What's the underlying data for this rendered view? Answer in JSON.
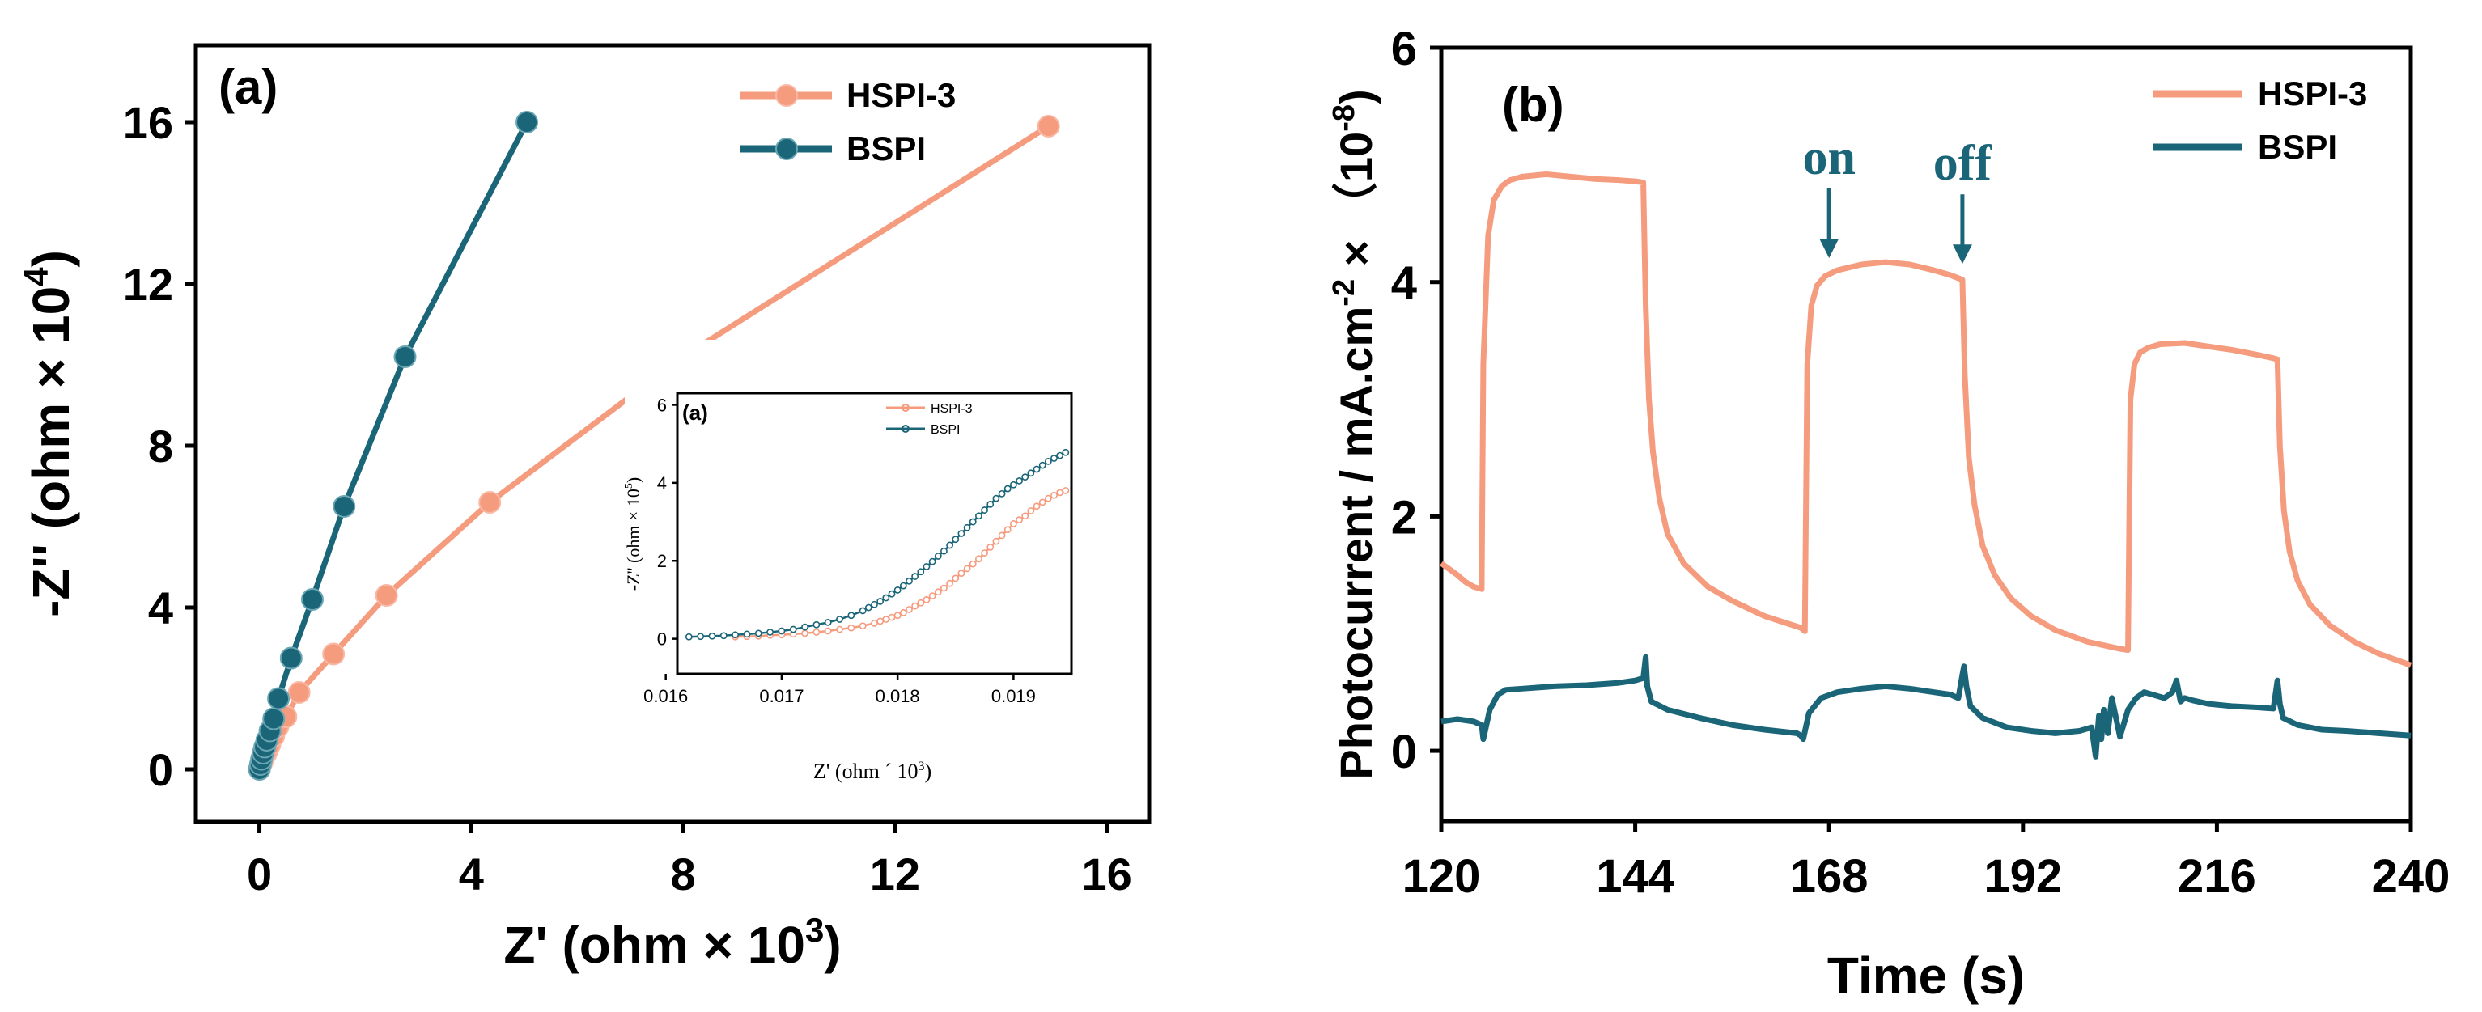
{
  "colors": {
    "hspi": "#F59B7E",
    "bspi": "#1A6577",
    "axis": "#000000",
    "annotation": "#1A6577"
  },
  "chart_data": [
    {
      "type": "line",
      "panel_label": "(a)",
      "xlabel": "Z' (ohm × 10",
      "xlabel_exp": "3",
      "xlabel_close": ")",
      "ylabel": "-Z'' (ohm × 10",
      "ylabel_exp": "4",
      "ylabel_close": ")",
      "xlim": [
        -1.2,
        16.8
      ],
      "ylim": [
        -1.3,
        17.9
      ],
      "xticks": [
        0,
        4,
        8,
        12,
        16
      ],
      "yticks": [
        0,
        4,
        8,
        12,
        16
      ],
      "xtick_labels": [
        "0",
        "4",
        "8",
        "12",
        "16"
      ],
      "ytick_labels": [
        "0",
        "4",
        "8",
        "12",
        "16"
      ],
      "legend": {
        "position": "top-right",
        "entries": [
          "HSPI-3",
          "BSPI"
        ]
      },
      "series": [
        {
          "name": "HSPI-3",
          "color_key": "hspi",
          "x": [
            0.0,
            0.02,
            0.05,
            0.08,
            0.12,
            0.16,
            0.2,
            0.27,
            0.35,
            0.5,
            0.75,
            1.4,
            2.4,
            4.35,
            8.0,
            14.9
          ],
          "y": [
            0.0,
            0.1,
            0.18,
            0.27,
            0.38,
            0.5,
            0.62,
            0.82,
            1.05,
            1.3,
            1.9,
            2.85,
            4.3,
            6.6,
            10.2,
            15.9
          ]
        },
        {
          "name": "BSPI",
          "color_key": "bspi",
          "x": [
            0.0,
            0.02,
            0.04,
            0.07,
            0.1,
            0.14,
            0.2,
            0.27,
            0.36,
            0.6,
            1.0,
            1.6,
            2.75,
            5.05
          ],
          "y": [
            0.0,
            0.12,
            0.25,
            0.4,
            0.55,
            0.72,
            0.95,
            1.25,
            1.75,
            2.75,
            4.2,
            6.5,
            10.2,
            16.0
          ]
        }
      ]
    },
    {
      "type": "line",
      "role": "inset",
      "panel_label": "(a)",
      "xlabel": "Z' (ohm ´ 10",
      "xlabel_exp": "3",
      "xlabel_close": ")",
      "ylabel": "-Z'' (ohm × 10",
      "ylabel_exp": "5",
      "ylabel_close": ")",
      "xlim": [
        0.0161,
        0.0195
      ],
      "ylim": [
        -0.9,
        6.3
      ],
      "xticks": [
        0.016,
        0.017,
        0.018,
        0.019
      ],
      "yticks": [
        0,
        2,
        4,
        6
      ],
      "xtick_labels": [
        "0.016",
        "0.017",
        "0.018",
        "0.019"
      ],
      "ytick_labels": [
        "0",
        "2",
        "4",
        "6"
      ],
      "legend": {
        "position": "top-right",
        "entries": [
          "HSPI-3",
          "BSPI"
        ]
      },
      "series": [
        {
          "name": "HSPI-3",
          "color_key": "hspi",
          "x": [
            0.0166,
            0.0167,
            0.0168,
            0.0169,
            0.017,
            0.0171,
            0.0172,
            0.0173,
            0.0174,
            0.0175,
            0.0176,
            0.0177,
            0.0178,
            0.01785,
            0.0179,
            0.01795,
            0.018,
            0.01805,
            0.0181,
            0.01815,
            0.0182,
            0.01825,
            0.0183,
            0.01835,
            0.0184,
            0.01845,
            0.0185,
            0.01855,
            0.0186,
            0.01865,
            0.0187,
            0.01875,
            0.0188,
            0.01885,
            0.0189,
            0.01895,
            0.019,
            0.01905,
            0.0191,
            0.01915,
            0.0192,
            0.01925,
            0.0193,
            0.01935,
            0.0194,
            0.01945
          ],
          "y": [
            0.05,
            0.06,
            0.07,
            0.09,
            0.1,
            0.12,
            0.14,
            0.17,
            0.2,
            0.24,
            0.28,
            0.33,
            0.4,
            0.45,
            0.5,
            0.55,
            0.6,
            0.67,
            0.75,
            0.84,
            0.92,
            1.0,
            1.1,
            1.2,
            1.3,
            1.42,
            1.55,
            1.68,
            1.8,
            1.92,
            2.05,
            2.2,
            2.35,
            2.5,
            2.65,
            2.8,
            2.95,
            3.05,
            3.15,
            3.28,
            3.4,
            3.5,
            3.6,
            3.68,
            3.75,
            3.8
          ]
        },
        {
          "name": "BSPI",
          "color_key": "bspi",
          "x": [
            0.0162,
            0.0163,
            0.0164,
            0.0165,
            0.0166,
            0.0167,
            0.0168,
            0.0169,
            0.017,
            0.0171,
            0.0172,
            0.0173,
            0.0174,
            0.0175,
            0.0176,
            0.0177,
            0.01775,
            0.0178,
            0.01785,
            0.0179,
            0.01795,
            0.018,
            0.01805,
            0.0181,
            0.01815,
            0.0182,
            0.01825,
            0.0183,
            0.01835,
            0.0184,
            0.01845,
            0.0185,
            0.01855,
            0.0186,
            0.01865,
            0.0187,
            0.01875,
            0.0188,
            0.01885,
            0.0189,
            0.01895,
            0.019,
            0.01905,
            0.0191,
            0.01915,
            0.0192,
            0.01925,
            0.0193,
            0.01935,
            0.0194,
            0.01945
          ],
          "y": [
            0.05,
            0.06,
            0.07,
            0.08,
            0.1,
            0.12,
            0.14,
            0.17,
            0.2,
            0.24,
            0.3,
            0.36,
            0.42,
            0.5,
            0.6,
            0.72,
            0.8,
            0.88,
            0.96,
            1.05,
            1.15,
            1.25,
            1.36,
            1.48,
            1.6,
            1.72,
            1.85,
            1.98,
            2.12,
            2.25,
            2.4,
            2.55,
            2.7,
            2.85,
            3.0,
            3.15,
            3.3,
            3.45,
            3.6,
            3.72,
            3.85,
            3.95,
            4.05,
            4.15,
            4.25,
            4.35,
            4.45,
            4.55,
            4.63,
            4.7,
            4.78
          ]
        }
      ]
    },
    {
      "type": "line",
      "panel_label": "(b)",
      "xlabel": "Time (s)",
      "ylabel": "Photocurrent / mA.cm",
      "ylabel_exp": "-2",
      "ylabel_mid": " × （10",
      "ylabel_exp2": "-8",
      "ylabel_close": ")",
      "xlim": [
        120,
        240
      ],
      "ylim": [
        -0.6,
        6
      ],
      "xticks": [
        120,
        144,
        168,
        192,
        216,
        240
      ],
      "yticks": [
        0,
        2,
        4,
        6
      ],
      "xtick_labels": [
        "120",
        "144",
        "168",
        "192",
        "216",
        "240"
      ],
      "ytick_labels": [
        "0",
        "2",
        "4",
        "6"
      ],
      "legend": {
        "position": "top-right",
        "entries": [
          "HSPI-3",
          "BSPI"
        ]
      },
      "annotations": [
        {
          "text": "on",
          "x": 168,
          "y": 4.15
        },
        {
          "text": "off",
          "x": 184.5,
          "y": 4.1
        }
      ],
      "series": [
        {
          "name": "HSPI-3",
          "color_key": "hspi",
          "x": [
            120,
            121,
            122,
            123,
            124,
            125,
            125.2,
            125.8,
            126.5,
            127.5,
            128.5,
            130,
            133,
            136,
            139,
            142,
            144,
            145,
            145.3,
            145.7,
            146.2,
            147,
            148,
            150,
            153,
            156,
            160,
            164.5,
            165,
            165.3,
            165.8,
            166.5,
            167.5,
            169,
            172,
            175,
            178,
            181,
            183,
            184.5,
            184.8,
            185.3,
            186,
            187,
            188.5,
            190.5,
            193,
            196,
            200,
            204,
            205,
            205.3,
            205.8,
            206.5,
            207.5,
            209,
            212,
            215,
            218,
            221,
            223,
            223.5,
            223.8,
            224.3,
            225,
            226,
            227.5,
            230,
            233,
            236,
            240
          ],
          "y": [
            1.6,
            1.55,
            1.5,
            1.44,
            1.4,
            1.38,
            3.3,
            4.4,
            4.7,
            4.82,
            4.87,
            4.9,
            4.92,
            4.9,
            4.88,
            4.87,
            4.86,
            4.85,
            3.8,
            3.0,
            2.55,
            2.15,
            1.85,
            1.6,
            1.4,
            1.28,
            1.15,
            1.05,
            1.02,
            3.3,
            3.8,
            3.97,
            4.05,
            4.1,
            4.15,
            4.17,
            4.15,
            4.1,
            4.06,
            4.02,
            3.2,
            2.5,
            2.1,
            1.75,
            1.5,
            1.3,
            1.15,
            1.03,
            0.93,
            0.87,
            0.86,
            3.0,
            3.3,
            3.4,
            3.44,
            3.47,
            3.48,
            3.45,
            3.42,
            3.38,
            3.35,
            3.34,
            2.6,
            2.05,
            1.7,
            1.45,
            1.25,
            1.07,
            0.93,
            0.83,
            0.73
          ]
        },
        {
          "name": "BSPI",
          "color_key": "bspi",
          "x": [
            120,
            122,
            124,
            125,
            125.2,
            126,
            127,
            128,
            130,
            134,
            138,
            142,
            144,
            145,
            145.3,
            145.5,
            146,
            148,
            152,
            156,
            160,
            164,
            164.5,
            164.8,
            165.5,
            167,
            169,
            172,
            175,
            178,
            181,
            183,
            184,
            184.5,
            184.7,
            185,
            185.5,
            187,
            190,
            193,
            196,
            199,
            200.5,
            201,
            201.4,
            201.7,
            202,
            202.5,
            203,
            204,
            205,
            205.5,
            206,
            207,
            208,
            209.5,
            210.5,
            211,
            211.5,
            212,
            213,
            215,
            218,
            221,
            223,
            223.5,
            223.8,
            224.2,
            226,
            229,
            232,
            236,
            240
          ],
          "y": [
            0.25,
            0.27,
            0.25,
            0.22,
            0.1,
            0.35,
            0.48,
            0.52,
            0.53,
            0.55,
            0.56,
            0.58,
            0.6,
            0.62,
            0.8,
            0.55,
            0.42,
            0.35,
            0.28,
            0.22,
            0.18,
            0.15,
            0.13,
            0.1,
            0.32,
            0.45,
            0.5,
            0.53,
            0.55,
            0.53,
            0.5,
            0.48,
            0.45,
            0.65,
            0.72,
            0.55,
            0.38,
            0.28,
            0.2,
            0.17,
            0.15,
            0.17,
            0.2,
            -0.05,
            0.3,
            0.1,
            0.35,
            0.15,
            0.45,
            0.12,
            0.35,
            0.4,
            0.45,
            0.5,
            0.48,
            0.45,
            0.5,
            0.6,
            0.42,
            0.45,
            0.43,
            0.4,
            0.38,
            0.37,
            0.36,
            0.6,
            0.4,
            0.28,
            0.22,
            0.18,
            0.17,
            0.15,
            0.13
          ]
        }
      ]
    }
  ]
}
